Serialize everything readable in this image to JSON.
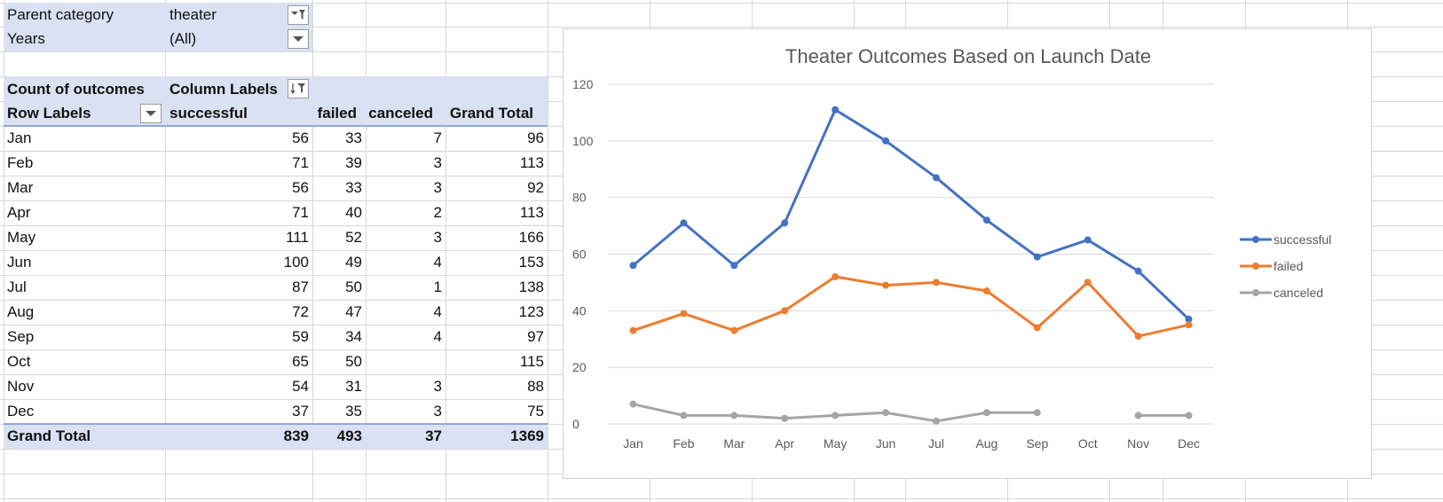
{
  "filters": [
    {
      "label": "Parent category",
      "value": "theater",
      "icon": "filter-icon"
    },
    {
      "label": "Years",
      "value": "(All)",
      "icon": "dropdown-arrow-icon"
    }
  ],
  "pivot": {
    "corner_label": "Count of outcomes",
    "column_labels": "Column Labels",
    "row_labels": "Row Labels",
    "headers": [
      "successful",
      "failed",
      "canceled",
      "Grand Total"
    ],
    "rows": [
      {
        "label": "Jan",
        "successful": "56",
        "failed": "33",
        "canceled": "7",
        "total": "96"
      },
      {
        "label": "Feb",
        "successful": "71",
        "failed": "39",
        "canceled": "3",
        "total": "113"
      },
      {
        "label": "Mar",
        "successful": "56",
        "failed": "33",
        "canceled": "3",
        "total": "92"
      },
      {
        "label": "Apr",
        "successful": "71",
        "failed": "40",
        "canceled": "2",
        "total": "113"
      },
      {
        "label": "May",
        "successful": "111",
        "failed": "52",
        "canceled": "3",
        "total": "166"
      },
      {
        "label": "Jun",
        "successful": "100",
        "failed": "49",
        "canceled": "4",
        "total": "153"
      },
      {
        "label": "Jul",
        "successful": "87",
        "failed": "50",
        "canceled": "1",
        "total": "138"
      },
      {
        "label": "Aug",
        "successful": "72",
        "failed": "47",
        "canceled": "4",
        "total": "123"
      },
      {
        "label": "Sep",
        "successful": "59",
        "failed": "34",
        "canceled": "4",
        "total": "97"
      },
      {
        "label": "Oct",
        "successful": "65",
        "failed": "50",
        "canceled": "",
        "total": "115"
      },
      {
        "label": "Nov",
        "successful": "54",
        "failed": "31",
        "canceled": "3",
        "total": "88"
      },
      {
        "label": "Dec",
        "successful": "37",
        "failed": "35",
        "canceled": "3",
        "total": "75"
      }
    ],
    "grand_total": {
      "label": "Grand Total",
      "successful": "839",
      "failed": "493",
      "canceled": "37",
      "total": "1369"
    }
  },
  "colors": {
    "header_band": "#d9e1f2",
    "successful": "#4472c4",
    "failed": "#ed7d31",
    "canceled": "#a5a5a5"
  },
  "chart_data": {
    "type": "line",
    "title": "Theater Outcomes Based on Launch Date",
    "categories": [
      "Jan",
      "Feb",
      "Mar",
      "Apr",
      "May",
      "Jun",
      "Jul",
      "Aug",
      "Sep",
      "Oct",
      "Nov",
      "Dec"
    ],
    "ylim": [
      0,
      120
    ],
    "yticks": [
      0,
      20,
      40,
      60,
      80,
      100,
      120
    ],
    "grid": true,
    "legend": "right",
    "series": [
      {
        "name": "successful",
        "color": "#4472c4",
        "values": [
          56,
          71,
          56,
          71,
          111,
          100,
          87,
          72,
          59,
          65,
          54,
          37
        ]
      },
      {
        "name": "failed",
        "color": "#ed7d31",
        "values": [
          33,
          39,
          33,
          40,
          52,
          49,
          50,
          47,
          34,
          50,
          31,
          35
        ]
      },
      {
        "name": "canceled",
        "color": "#a5a5a5",
        "values": [
          7,
          3,
          3,
          2,
          3,
          4,
          1,
          4,
          4,
          null,
          3,
          3
        ]
      }
    ]
  }
}
